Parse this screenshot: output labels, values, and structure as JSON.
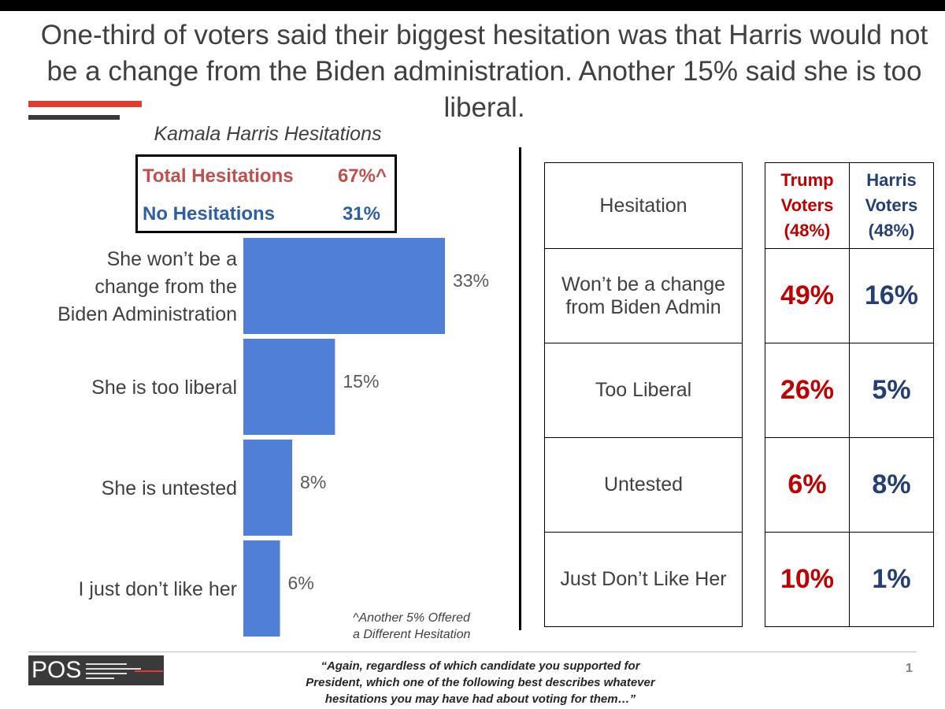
{
  "headline": "One-third of voters said their biggest hesitation was that Harris would not be a change from the Biden administration. Another 15% said she is too liberal.",
  "summary": {
    "total_label": "Total Hesitations",
    "total_value": "67%^",
    "none_label": "No Hesitations",
    "none_value": "31%"
  },
  "chart_data": {
    "type": "bar",
    "orientation": "horizontal",
    "title": "Kamala Harris Hesitations",
    "categories": [
      [
        "She won’t be a",
        "change from the",
        "Biden Administration"
      ],
      [
        "She is too liberal"
      ],
      [
        "She is untested"
      ],
      [
        "I just don’t like her"
      ]
    ],
    "values": [
      33,
      15,
      8,
      6
    ],
    "value_labels": [
      "33%",
      "15%",
      "8%",
      "6%"
    ],
    "bar_color": "#4f7fd6",
    "xlim": [
      0,
      33
    ]
  },
  "footnote": [
    "^Another 5% Offered",
    "a Different Hesitation"
  ],
  "table": {
    "header_hesitation": "Hesitation",
    "header_trump": [
      "Trump",
      "Voters",
      "(48%)"
    ],
    "header_harris": [
      "Harris",
      "Voters",
      "(48%)"
    ],
    "rows": [
      {
        "label": [
          "Won’t be a change",
          "from Biden Admin"
        ],
        "trump": "49%",
        "harris": "16%"
      },
      {
        "label": [
          "Too Liberal"
        ],
        "trump": "26%",
        "harris": "5%"
      },
      {
        "label": [
          "Untested"
        ],
        "trump": "6%",
        "harris": "8%"
      },
      {
        "label": [
          "Just Don’t Like Her"
        ],
        "trump": "10%",
        "harris": "1%"
      }
    ],
    "trump_color": "#c00000",
    "harris_color": "#243f73"
  },
  "footer": {
    "logo": "POS",
    "question": [
      "“Again, regardless of which candidate you supported for",
      "President, which one of the following best describes whatever",
      "hesitations you may have had about voting for them…”"
    ],
    "page_number": "1"
  }
}
